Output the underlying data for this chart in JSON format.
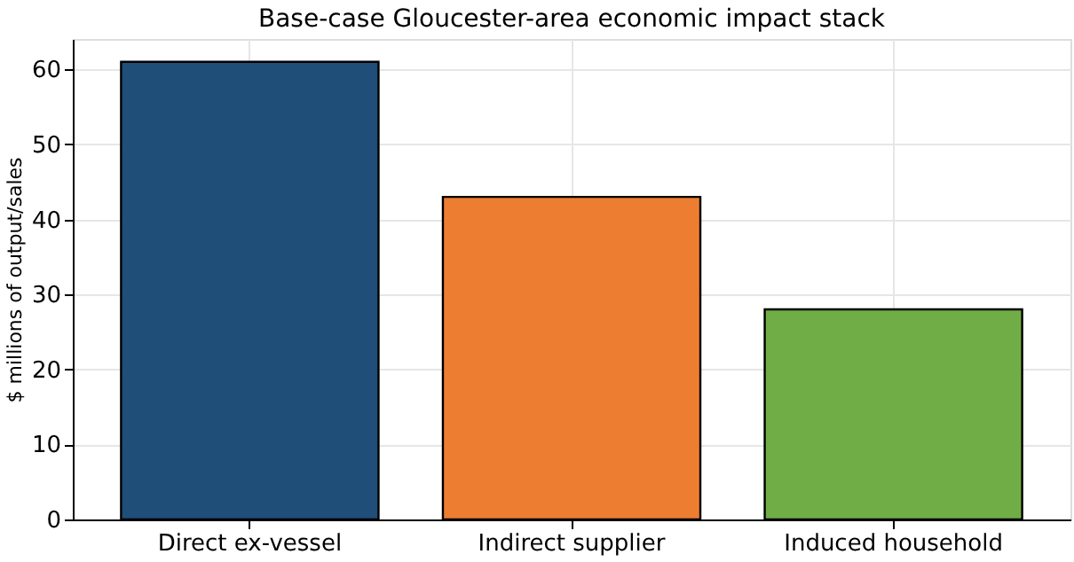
{
  "chart_data": {
    "type": "bar",
    "title": "Base-case Gloucester-area economic impact stack",
    "ylabel": "$ millions of output/sales",
    "categories": [
      "Direct ex-vessel",
      "Indirect supplier",
      "Induced household"
    ],
    "values": [
      61,
      43,
      28
    ],
    "colors": [
      "#1f4e79",
      "#ed7d31",
      "#70ad47"
    ],
    "ylim": [
      0,
      64.05
    ],
    "yticks": [
      0,
      10,
      20,
      30,
      40,
      50,
      60
    ],
    "grid": true
  }
}
